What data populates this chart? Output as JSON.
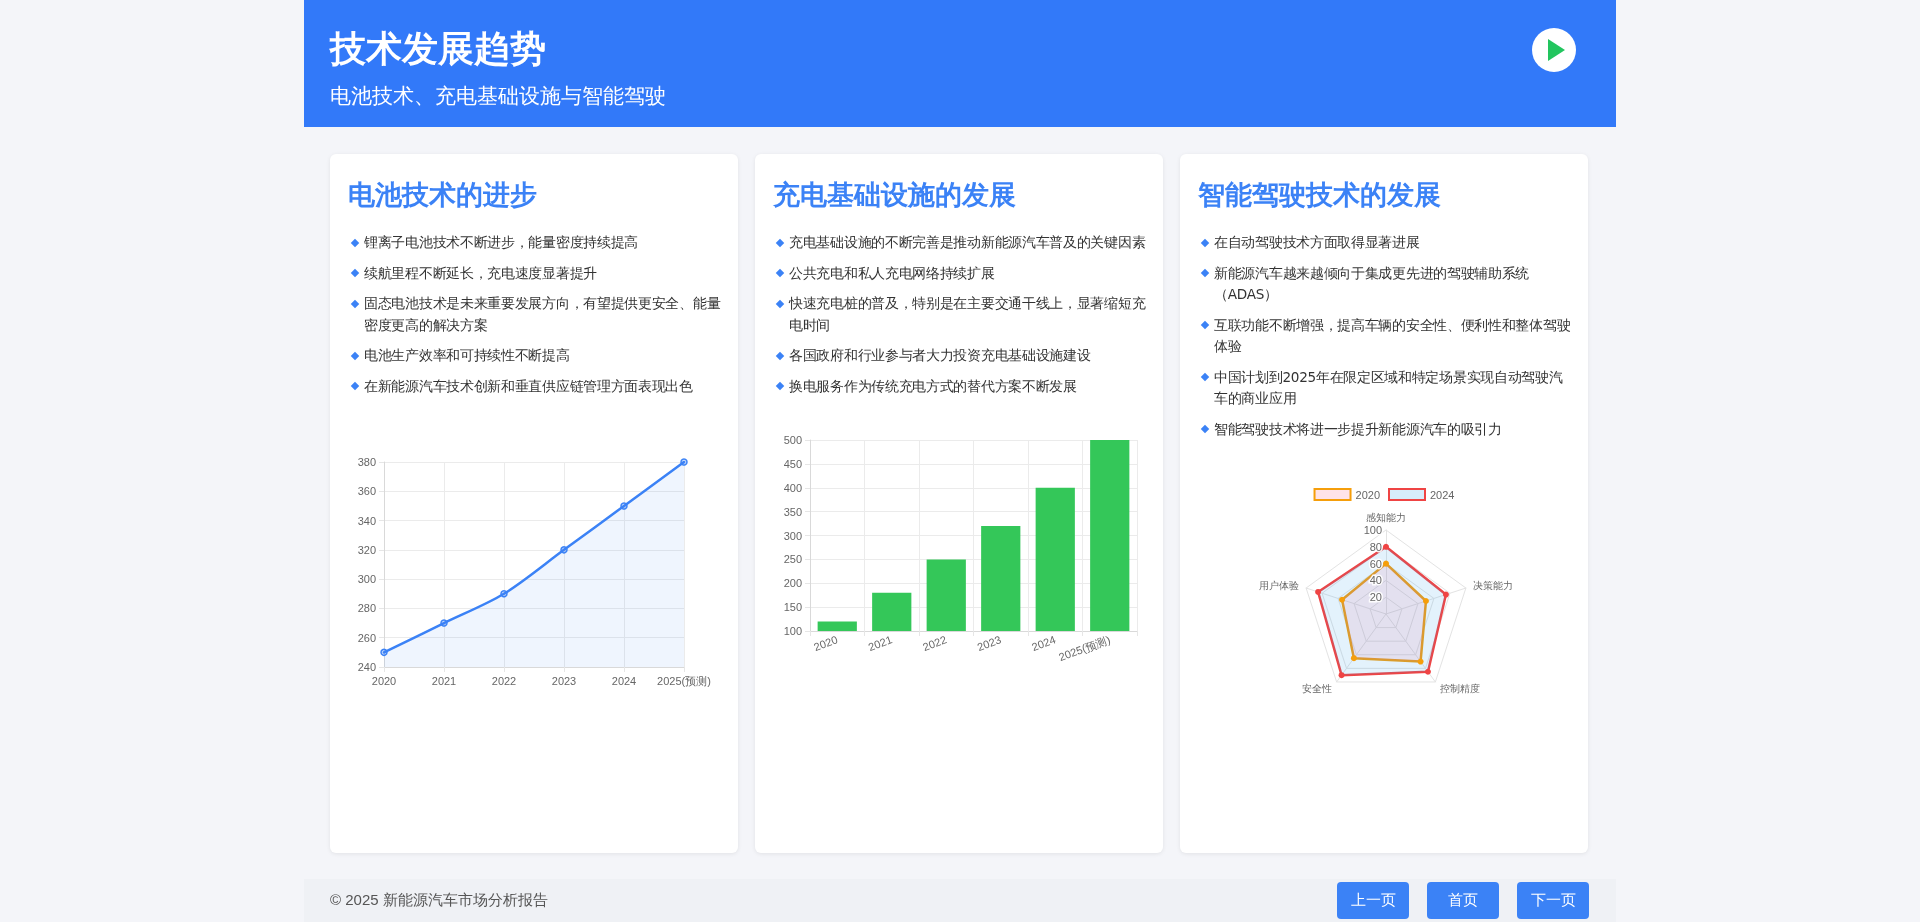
{
  "chart_data": [
    {
      "type": "other",
      "title": "技术发展趋势",
      "subtitle": "电池技术、充电基础设施与智能驾驶"
    },
    {
      "type": "area",
      "title": "电池技术的进步",
      "annotations": [
        "锂离子电池技术不断进步，能量密度持续提高",
        "续航里程不断延长，充电速度显著提升",
        "固态电池技术是未来重要发展方向，有望提供更安全、能量密度更高的解决方案",
        "电池生产效率和可持续性不断提高",
        "在新能源汽车技术创新和垂直供应链管理方面表现出色"
      ],
      "categories": [
        "2020",
        "2021",
        "2022",
        "2023",
        "2024",
        "2025(预测)"
      ],
      "series": [
        {
          "color": "#3b82f6",
          "values": [
            250,
            270,
            290,
            320,
            350,
            380
          ]
        }
      ],
      "ylim": [
        240,
        380
      ],
      "yticks": [
        240,
        260,
        280,
        300,
        320,
        340,
        360,
        380
      ],
      "grid": true,
      "marker": "circle"
    },
    {
      "type": "bar",
      "title": "充电基础设施的发展",
      "annotations": [
        "充电基础设施的不断完善是推动新能源汽车普及的关键因素",
        "公共充电和私人充电网络持续扩展",
        "快速充电桩的普及，特别是在主要交通干线上，显著缩短充电时间",
        "各国政府和行业参与者大力投资充电基础设施建设",
        "换电服务作为传统充电方式的替代方案不断发展"
      ],
      "categories": [
        "2020",
        "2021",
        "2022",
        "2023",
        "2024",
        "2025(预测)"
      ],
      "series": [
        {
          "color": "#34c759",
          "values": [
            120,
            180,
            250,
            320,
            400,
            500
          ]
        }
      ],
      "ylim": [
        100,
        500
      ],
      "yticks": [
        100,
        150,
        200,
        250,
        300,
        350,
        400,
        450,
        500
      ],
      "grid": true
    },
    {
      "type": "radar",
      "title": "智能驾驶技术的发展",
      "annotations": [
        "在自动驾驶技术方面取得显著进展",
        "新能源汽车越来越倾向于集成更先进的驾驶辅助系统（ADAS）",
        "互联功能不断增强，提高车辆的安全性、便利性和整体驾驶体验",
        "中国计划到2025年在限定区域和特定场景实现自动驾驶汽车的商业应用",
        "智能驾驶技术将进一步提升新能源汽车的吸引力"
      ],
      "categories": [
        "感知能力",
        "决策能力",
        "控制精度",
        "安全性",
        "用户体验"
      ],
      "series": [
        {
          "name": "2020",
          "color": "#f59e0b",
          "values": [
            60,
            50,
            70,
            65,
            55
          ]
        },
        {
          "name": "2024",
          "color": "#ef4444",
          "values": [
            80,
            75,
            85,
            90,
            85
          ]
        }
      ],
      "ylim": [
        0,
        100
      ],
      "yticks": [
        20,
        40,
        60,
        80,
        100
      ],
      "grid": true,
      "legend": "top",
      "marker": "circle"
    },
    {
      "type": "other",
      "annotations": [
        "© 2025 新能源汽车市场分析报告",
        "上一页",
        "首页",
        "下一页"
      ]
    }
  ]
}
